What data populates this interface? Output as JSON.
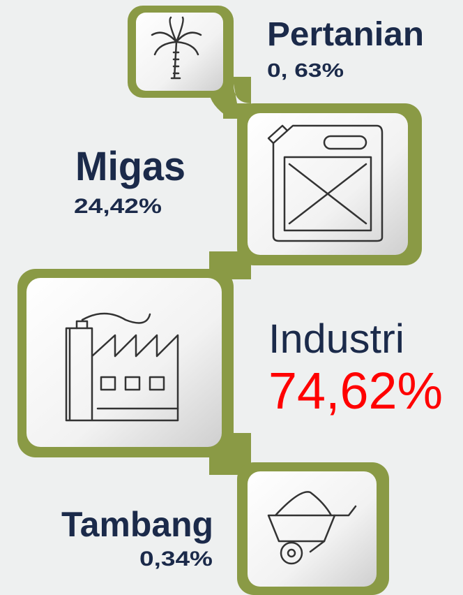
{
  "items": [
    {
      "name": "Pertanian",
      "value": "0, 63%"
    },
    {
      "name": "Migas",
      "value": "24,42%"
    },
    {
      "name": "Industri",
      "value": "74,62%"
    },
    {
      "name": "Tambang",
      "value": "0,34%"
    }
  ]
}
